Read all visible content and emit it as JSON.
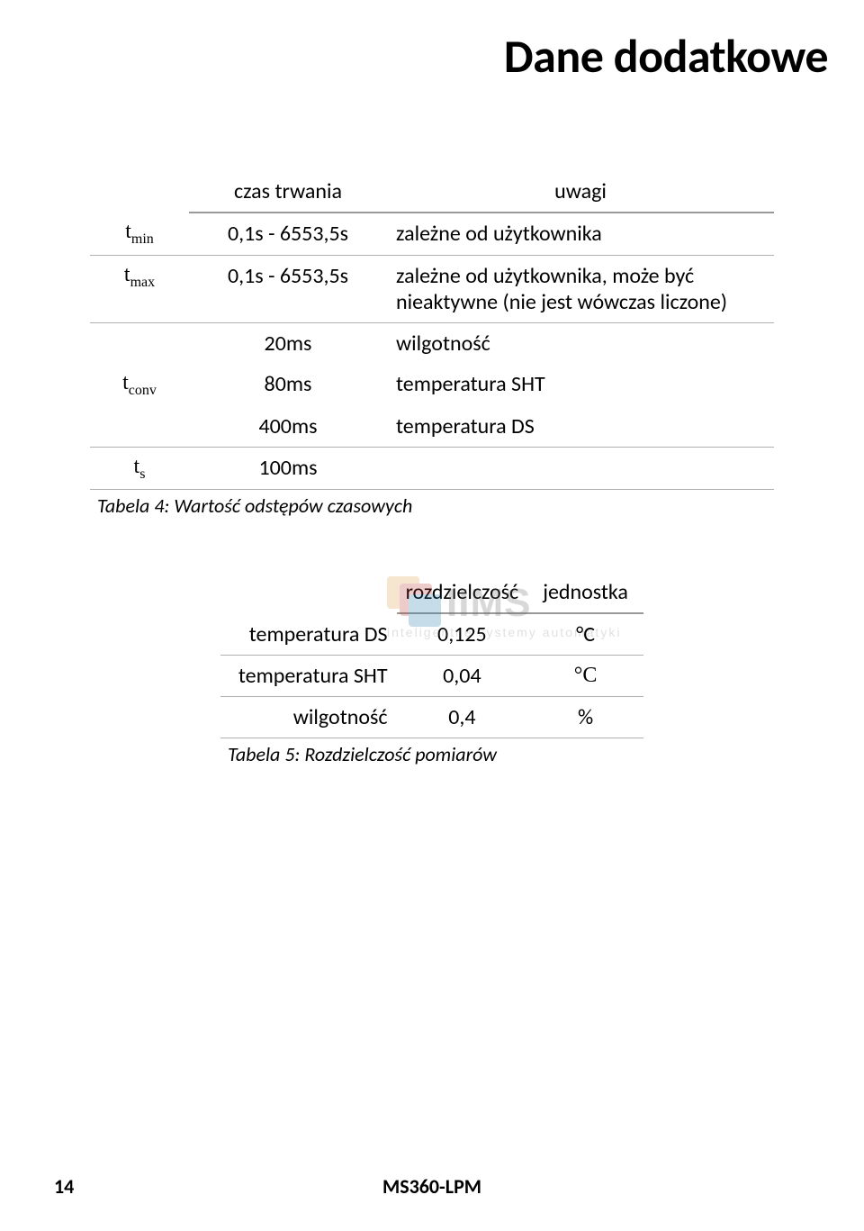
{
  "title": "Dane dodatkowe",
  "table4": {
    "headers": {
      "h1": "",
      "h2": "czas trwania",
      "h3": "uwagi"
    },
    "rows": [
      {
        "sym": "t",
        "sub": "min",
        "time": "0,1s - 6553,5s",
        "note": "zależne od użytkownika"
      },
      {
        "sym": "t",
        "sub": "max",
        "time": "0,1s - 6553,5s",
        "note": "zależne od użytkownika, może być nieaktywne (nie jest wówczas liczone)"
      },
      {
        "sym": "",
        "sub": "",
        "time": "20ms",
        "note": "wilgotność"
      },
      {
        "sym": "t",
        "sub": "conv",
        "time": "80ms",
        "note": "temperatura SHT"
      },
      {
        "sym": "",
        "sub": "",
        "time": "400ms",
        "note": "temperatura DS"
      },
      {
        "sym": "t",
        "sub": "s",
        "time": "100ms",
        "note": ""
      }
    ],
    "caption": "Tabela 4: Wartość odstępów czasowych"
  },
  "table5": {
    "headers": {
      "h1": "",
      "h2": "rozdzielczość",
      "h3": "jednostka"
    },
    "rows": [
      {
        "param": "temperatura DS",
        "res": "0,125",
        "unit": "°C"
      },
      {
        "param": "temperatura SHT",
        "res": "0,04",
        "unit": "°C"
      },
      {
        "param": "wilgotność",
        "res": "0,4",
        "unit": "%"
      }
    ],
    "caption": "Tabela 5: Rozdzielczość pomiarów"
  },
  "watermark": {
    "brand": "IIMS",
    "tagline": "inteligentne systemy automatyki"
  },
  "footer": {
    "page": "14",
    "doc": "MS360-LPM"
  }
}
